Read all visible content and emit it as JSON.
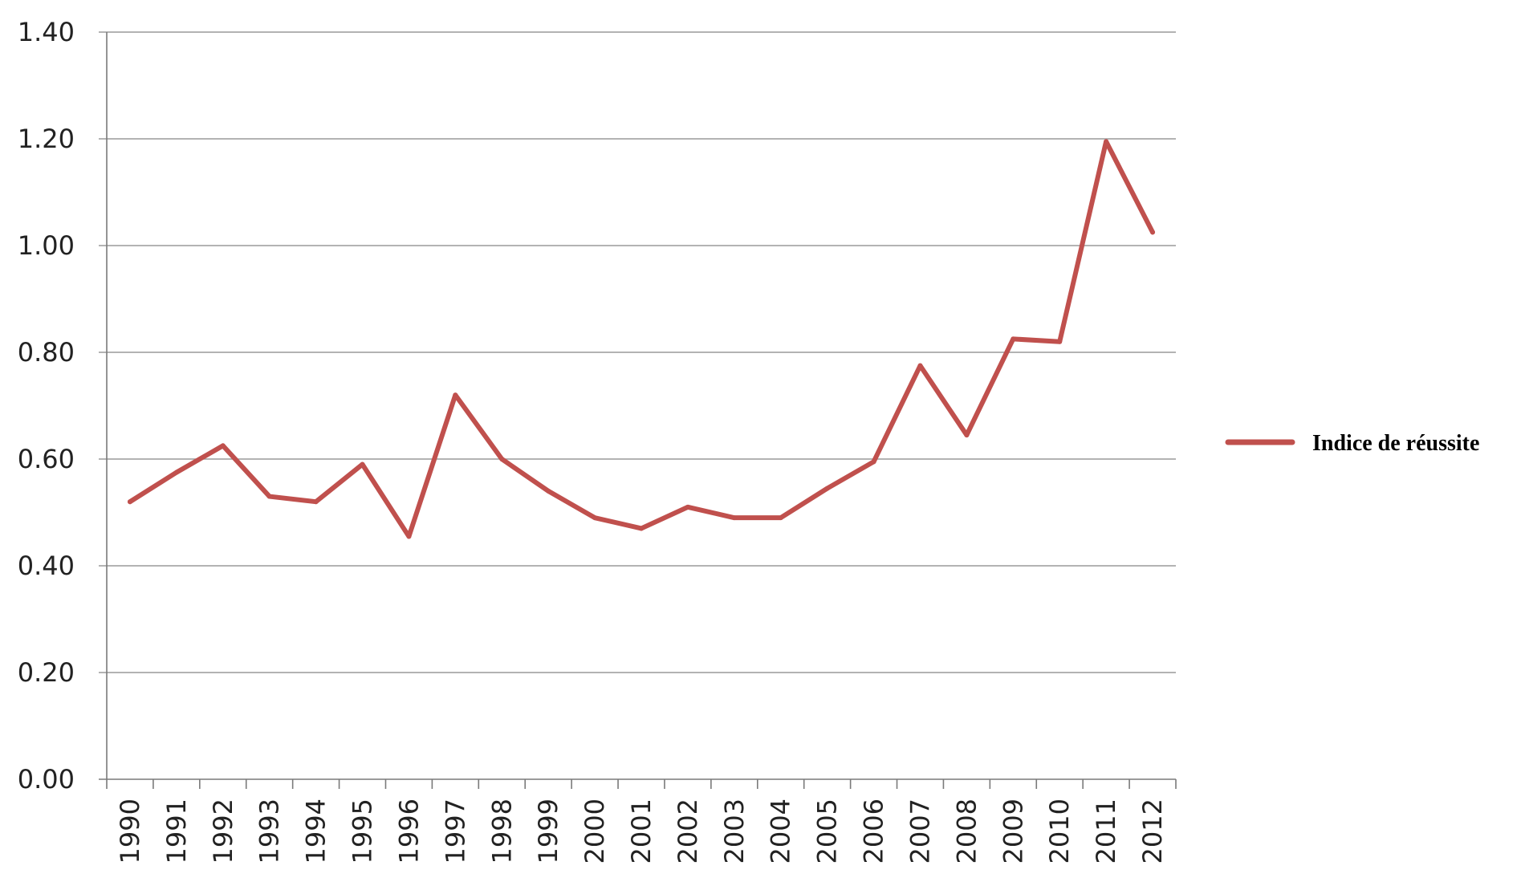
{
  "chart_data": {
    "type": "line",
    "title": "",
    "xlabel": "",
    "ylabel": "",
    "categories": [
      "1990",
      "1991",
      "1992",
      "1993",
      "1994",
      "1995",
      "1996",
      "1997",
      "1998",
      "1999",
      "2000",
      "2001",
      "2002",
      "2003",
      "2004",
      "2005",
      "2006",
      "2007",
      "2008",
      "2009",
      "2010",
      "2011",
      "2012"
    ],
    "series": [
      {
        "name": "Indice de réussite",
        "color": "#c0504d",
        "values": [
          0.52,
          0.575,
          0.625,
          0.53,
          0.52,
          0.59,
          0.455,
          0.72,
          0.6,
          0.54,
          0.49,
          0.47,
          0.51,
          0.49,
          0.49,
          0.545,
          0.595,
          0.775,
          0.645,
          0.825,
          0.82,
          1.195,
          1.025
        ]
      }
    ],
    "ylim": [
      0,
      1.4
    ],
    "yticks": [
      "0.00",
      "0.20",
      "0.40",
      "0.60",
      "0.80",
      "1.00",
      "1.20",
      "1.40"
    ],
    "grid": true,
    "legend_position": "right"
  }
}
